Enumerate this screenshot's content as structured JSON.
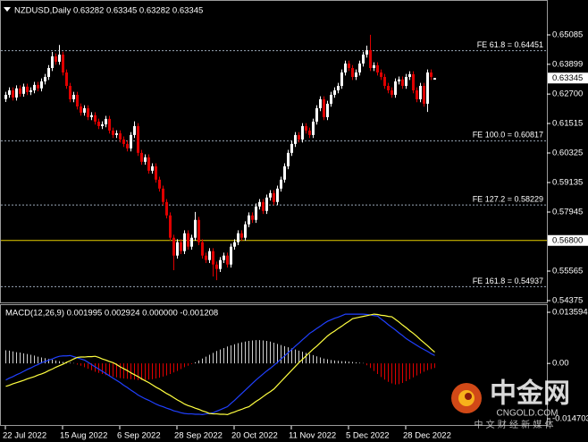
{
  "chart_data": [
    {
      "type": "candlestick",
      "title": "NZDUSD,Daily 0.63282 0.63345 0.63282 0.63345",
      "up_color": "#ffffff",
      "down_color": "#e00000",
      "ylim": [
        0.54267,
        0.66455
      ],
      "yticks": [
        0.65085,
        0.63899,
        {
          "value": 0.627,
          "label": "0.62700"
        },
        0.61515,
        0.60325,
        0.59135,
        0.57945,
        0.55565,
        0.54375
      ],
      "levels": [
        {
          "label": "FE 61.8 = 0.64451",
          "value": 0.64451
        },
        {
          "label": "FE 100.0 = 0.60817",
          "value": 0.60817
        },
        {
          "label": "FE 127.2 = 0.58229",
          "value": 0.58229
        },
        {
          "label": "FE 161.8 = 0.54937",
          "value": 0.54937
        }
      ],
      "level_color": "#9aa8b8",
      "hline": {
        "value": 0.568,
        "label": "0.56800",
        "color": "#e8d000"
      },
      "last_price": 0.63345,
      "open": [
        0.625,
        0.6267,
        0.6285,
        0.6256,
        0.6293,
        0.6271,
        0.63,
        0.6278,
        0.6285,
        0.6307,
        0.6293,
        0.6321,
        0.6339,
        0.6375,
        0.6422,
        0.64,
        0.6429,
        0.6357,
        0.6303,
        0.6249,
        0.6267,
        0.622,
        0.6195,
        0.6213,
        0.6177,
        0.6185,
        0.6159,
        0.6141,
        0.6148,
        0.617,
        0.6123,
        0.6105,
        0.6112,
        0.6087,
        0.6069,
        0.6051,
        0.6105,
        0.6141,
        0.6033,
        0.5997,
        0.6015,
        0.5961,
        0.5979,
        0.5925,
        0.5889,
        0.5835,
        0.5781,
        0.5691,
        0.5619,
        0.5673,
        0.5637,
        0.5709,
        0.5655,
        0.5691,
        0.5763,
        0.5673,
        0.5619,
        0.5601,
        0.5637,
        0.5583,
        0.5565,
        0.5601,
        0.5619,
        0.5583,
        0.5655,
        0.5673,
        0.5709,
        0.5691,
        0.5745,
        0.5781,
        0.5763,
        0.5817,
        0.5835,
        0.5799,
        0.5853,
        0.5871,
        0.5835,
        0.5889,
        0.5925,
        0.5979,
        0.6033,
        0.6069,
        0.6105,
        0.6087,
        0.6141,
        0.6123,
        0.6105,
        0.6159,
        0.6213,
        0.6249,
        0.6177,
        0.6231,
        0.6267,
        0.6285,
        0.6303,
        0.6357,
        0.6393,
        0.6375,
        0.6339,
        0.6357,
        0.6393,
        0.6429,
        0.6447,
        0.6375,
        0.6386,
        0.6357,
        0.6339,
        0.6303,
        0.6285,
        0.6267,
        0.6321,
        0.6329,
        0.6303,
        0.6339,
        0.635,
        0.6285,
        0.6249,
        0.6303,
        0.6231,
        0.6357,
        0.63282
      ],
      "high": [
        0.6279,
        0.6297,
        0.6297,
        0.6305,
        0.6305,
        0.6312,
        0.6312,
        0.6297,
        0.6319,
        0.6319,
        0.6333,
        0.6351,
        0.6387,
        0.644,
        0.6434,
        0.6468,
        0.6441,
        0.6369,
        0.6315,
        0.6279,
        0.6279,
        0.6232,
        0.6225,
        0.6225,
        0.6197,
        0.6197,
        0.6171,
        0.616,
        0.6182,
        0.6182,
        0.6135,
        0.6124,
        0.6124,
        0.6099,
        0.6081,
        0.6117,
        0.616,
        0.6153,
        0.6045,
        0.6027,
        0.6027,
        0.5991,
        0.5991,
        0.5937,
        0.5901,
        0.5847,
        0.5793,
        0.5703,
        0.5685,
        0.5685,
        0.5721,
        0.5721,
        0.5703,
        0.5795,
        0.5775,
        0.5685,
        0.5631,
        0.5649,
        0.5649,
        0.5595,
        0.5613,
        0.5631,
        0.5631,
        0.5667,
        0.5685,
        0.5721,
        0.5721,
        0.5757,
        0.5793,
        0.5793,
        0.5829,
        0.5847,
        0.5847,
        0.5865,
        0.5883,
        0.5883,
        0.5901,
        0.5937,
        0.5991,
        0.6045,
        0.6081,
        0.6117,
        0.6117,
        0.6153,
        0.6153,
        0.6135,
        0.6171,
        0.6225,
        0.6261,
        0.6261,
        0.6243,
        0.6279,
        0.6297,
        0.6315,
        0.6369,
        0.6405,
        0.6405,
        0.6387,
        0.6369,
        0.6405,
        0.6441,
        0.6465,
        0.6509,
        0.6398,
        0.6398,
        0.6369,
        0.6351,
        0.6315,
        0.6297,
        0.6333,
        0.6341,
        0.6341,
        0.6351,
        0.6362,
        0.6362,
        0.6297,
        0.6315,
        0.6315,
        0.6369,
        0.6369,
        0.63345
      ],
      "low": [
        0.6238,
        0.6255,
        0.6244,
        0.6244,
        0.6259,
        0.6259,
        0.6266,
        0.6266,
        0.6273,
        0.6281,
        0.6281,
        0.6309,
        0.6327,
        0.6363,
        0.6388,
        0.6388,
        0.6345,
        0.6291,
        0.6237,
        0.6237,
        0.6208,
        0.6183,
        0.6183,
        0.6165,
        0.6165,
        0.6147,
        0.6129,
        0.6129,
        0.6136,
        0.6111,
        0.6093,
        0.6093,
        0.6075,
        0.6057,
        0.6039,
        0.6039,
        0.6093,
        0.6021,
        0.5985,
        0.5985,
        0.5949,
        0.5949,
        0.5913,
        0.5877,
        0.5823,
        0.5769,
        0.5679,
        0.556,
        0.5607,
        0.5625,
        0.5625,
        0.5643,
        0.5643,
        0.5679,
        0.5661,
        0.5607,
        0.5589,
        0.5589,
        0.5535,
        0.552,
        0.5553,
        0.5589,
        0.5571,
        0.5571,
        0.5643,
        0.5661,
        0.5679,
        0.5679,
        0.5733,
        0.5751,
        0.5751,
        0.5805,
        0.5787,
        0.5787,
        0.5841,
        0.5823,
        0.5823,
        0.5877,
        0.5913,
        0.5967,
        0.6021,
        0.6057,
        0.6075,
        0.6075,
        0.6111,
        0.6093,
        0.6093,
        0.6147,
        0.6201,
        0.6165,
        0.6165,
        0.6219,
        0.6255,
        0.6273,
        0.6291,
        0.6345,
        0.6363,
        0.6327,
        0.6327,
        0.6345,
        0.6381,
        0.6417,
        0.6363,
        0.6363,
        0.6345,
        0.6327,
        0.6291,
        0.6273,
        0.6255,
        0.6255,
        0.6309,
        0.6291,
        0.6291,
        0.6327,
        0.6273,
        0.6237,
        0.6237,
        0.6219,
        0.6198,
        0.6327,
        0.63282
      ],
      "close": [
        0.6267,
        0.6285,
        0.6256,
        0.6293,
        0.6271,
        0.63,
        0.6278,
        0.6285,
        0.6307,
        0.6293,
        0.6321,
        0.6339,
        0.6375,
        0.6422,
        0.64,
        0.6429,
        0.6357,
        0.6303,
        0.6249,
        0.6267,
        0.622,
        0.6195,
        0.6213,
        0.6177,
        0.6185,
        0.6159,
        0.6141,
        0.6148,
        0.617,
        0.6123,
        0.6105,
        0.6112,
        0.6087,
        0.6069,
        0.6051,
        0.6105,
        0.6141,
        0.6033,
        0.5997,
        0.6015,
        0.5961,
        0.5979,
        0.5925,
        0.5889,
        0.5835,
        0.5781,
        0.5691,
        0.5619,
        0.5673,
        0.5637,
        0.5709,
        0.5655,
        0.5691,
        0.5763,
        0.5673,
        0.5619,
        0.5601,
        0.5637,
        0.5583,
        0.5565,
        0.5601,
        0.5619,
        0.5583,
        0.5655,
        0.5673,
        0.5709,
        0.5691,
        0.5745,
        0.5781,
        0.5763,
        0.5817,
        0.5835,
        0.5799,
        0.5853,
        0.5871,
        0.5835,
        0.5889,
        0.5925,
        0.5979,
        0.6033,
        0.6069,
        0.6105,
        0.6087,
        0.6141,
        0.6123,
        0.6105,
        0.6159,
        0.6213,
        0.6249,
        0.6177,
        0.6231,
        0.6267,
        0.6285,
        0.6303,
        0.6357,
        0.6393,
        0.6375,
        0.6339,
        0.6357,
        0.6393,
        0.6429,
        0.6447,
        0.6375,
        0.6386,
        0.6357,
        0.6339,
        0.6303,
        0.6285,
        0.6267,
        0.6321,
        0.6329,
        0.6303,
        0.6339,
        0.635,
        0.6285,
        0.6249,
        0.6303,
        0.6231,
        0.6357,
        0.6339,
        0.63345
      ]
    },
    {
      "type": "macd",
      "title": "MACD(12,26,9) 0.001995 0.002924 0.000000 -0.001208",
      "ylim": [
        -0.0166,
        0.0155
      ],
      "yticks": [
        0.013594,
        {
          "value": 0,
          "label": "0.00"
        },
        -0.014703
      ],
      "categories": [
        "22 Jul 2022",
        null,
        null,
        null,
        null,
        null,
        null,
        null,
        null,
        null,
        null,
        null,
        null,
        null,
        null,
        null,
        "15 Aug 2022",
        null,
        null,
        null,
        null,
        null,
        null,
        null,
        null,
        null,
        null,
        null,
        null,
        null,
        null,
        null,
        "6 Sep 2022",
        null,
        null,
        null,
        null,
        null,
        null,
        null,
        null,
        null,
        null,
        null,
        null,
        null,
        null,
        null,
        "28 Sep 2022",
        null,
        null,
        null,
        null,
        null,
        null,
        null,
        null,
        null,
        null,
        null,
        null,
        null,
        null,
        null,
        "20 Oct 2022",
        null,
        null,
        null,
        null,
        null,
        null,
        null,
        null,
        null,
        null,
        null,
        null,
        null,
        null,
        null,
        "11 Nov 2022",
        null,
        null,
        null,
        null,
        null,
        null,
        null,
        null,
        null,
        null,
        null,
        null,
        null,
        null,
        null,
        "5 Dec 2022",
        null,
        null,
        null,
        null,
        null,
        null,
        null,
        null,
        null,
        null,
        null,
        null,
        null,
        null,
        null,
        "28 Dec 2022",
        null,
        null,
        null,
        null,
        null,
        null,
        null,
        null
      ],
      "series": [
        {
          "kind": "histogram",
          "color": "#d0d0d0",
          "neg_color": "#e00000",
          "values": [
            0.0035,
            0.0034,
            0.0032,
            0.003,
            0.0029,
            0.0027,
            0.0025,
            0.0023,
            0.0021,
            0.0018,
            0.0016,
            0.0014,
            0.0012,
            0.001,
            0.0008,
            0.0006,
            0.0004,
            0.0003,
            0.0002,
            0.0001,
            -0.0003,
            -0.0006,
            -0.001,
            -0.0014,
            -0.0018,
            -0.0022,
            -0.0025,
            -0.0028,
            -0.0031,
            -0.0033,
            -0.0035,
            -0.0037,
            -0.0039,
            -0.004,
            -0.0041,
            -0.0042,
            -0.0043,
            -0.0044,
            -0.0044,
            -0.0044,
            -0.0043,
            -0.0042,
            -0.004,
            -0.0038,
            -0.0035,
            -0.0032,
            -0.0028,
            -0.0024,
            -0.002,
            -0.0015,
            -0.001,
            -0.0006,
            -0.0002,
            0.0003,
            0.0008,
            0.0013,
            0.0018,
            0.0023,
            0.0028,
            0.0033,
            0.0037,
            0.0041,
            0.0045,
            0.0048,
            0.0051,
            0.0054,
            0.0056,
            0.0058,
            0.006,
            0.0061,
            0.0062,
            0.0062,
            0.0061,
            0.006,
            0.0058,
            0.0055,
            0.0052,
            0.0049,
            0.0046,
            0.0043,
            0.004,
            0.0037,
            0.0034,
            0.0031,
            0.0028,
            0.0025,
            0.0022,
            0.0019,
            0.0016,
            0.0013,
            0.0011,
            0.0009,
            0.0008,
            0.0007,
            0.0006,
            0.0006,
            0.0005,
            0.0004,
            0.0003,
            0.0002,
            0.0001,
            -0.0005,
            -0.0012,
            -0.002,
            -0.0028,
            -0.0036,
            -0.0043,
            -0.0049,
            -0.0053,
            -0.0056,
            -0.0055,
            -0.0052,
            -0.0047,
            -0.0042,
            -0.0037,
            -0.0032,
            -0.0027,
            -0.0022,
            -0.0018,
            -0.0015,
            -0.0012
          ]
        },
        {
          "kind": "line",
          "color": "#2040ff",
          "values": [
            -0.0044,
            -0.0039,
            -0.0035,
            -0.003,
            -0.0026,
            -0.0021,
            -0.0016,
            -0.0012,
            -0.0007,
            -0.0003,
            0.0002,
            0.0005,
            0.0009,
            0.0012,
            0.0016,
            0.0019,
            0.002,
            0.002,
            0.0021,
            0.0018,
            0.0015,
            0.0012,
            0.0009,
            0.0003,
            -0.0003,
            -0.0009,
            -0.0015,
            -0.0021,
            -0.0027,
            -0.0033,
            -0.0039,
            -0.0045,
            -0.0051,
            -0.0058,
            -0.0064,
            -0.0071,
            -0.0077,
            -0.0084,
            -0.0089,
            -0.0094,
            -0.0098,
            -0.0103,
            -0.0108,
            -0.0112,
            -0.0115,
            -0.0119,
            -0.0122,
            -0.0126,
            -0.0128,
            -0.0131,
            -0.0133,
            -0.0134,
            -0.0134,
            -0.0135,
            -0.0135,
            -0.0136,
            -0.0134,
            -0.0133,
            -0.0131,
            -0.0127,
            -0.0123,
            -0.0119,
            -0.0115,
            -0.0106,
            -0.0098,
            -0.0089,
            -0.008,
            -0.0071,
            -0.0062,
            -0.0053,
            -0.0044,
            -0.0036,
            -0.0028,
            -0.002,
            -0.0013,
            -0.0005,
            0.0003,
            0.0012,
            0.002,
            0.0029,
            0.0037,
            0.0046,
            0.0054,
            0.0063,
            0.0071,
            0.008,
            0.0086,
            0.0093,
            0.0099,
            0.0106,
            0.0112,
            0.0116,
            0.012,
            0.0123,
            0.0127,
            0.0131,
            0.0131,
            0.0131,
            0.0131,
            0.0131,
            0.0131,
            0.013,
            0.0129,
            0.0127,
            0.0126,
            0.0118,
            0.0111,
            0.0103,
            0.0096,
            0.0089,
            0.0081,
            0.0074,
            0.0066,
            0.006,
            0.0054,
            0.0048,
            0.0042,
            0.0037,
            0.0032,
            0.0026,
            0.0021
          ]
        },
        {
          "kind": "line",
          "color": "#ffff40",
          "values": [
            -0.0061,
            -0.0058,
            -0.0054,
            -0.0051,
            -0.0048,
            -0.0045,
            -0.0041,
            -0.0038,
            -0.0035,
            -0.0031,
            -0.0028,
            -0.0024,
            -0.0019,
            -0.0015,
            -0.001,
            -0.0006,
            -0.0002,
            0.0003,
            0.0007,
            0.0012,
            0.0016,
            0.0017,
            0.0017,
            0.0018,
            0.0018,
            0.0019,
            0.0016,
            0.0012,
            0.0009,
            0.0005,
            0.0002,
            -0.0003,
            -0.0009,
            -0.0014,
            -0.0019,
            -0.0025,
            -0.003,
            -0.0035,
            -0.0041,
            -0.0046,
            -0.0051,
            -0.0057,
            -0.0063,
            -0.0068,
            -0.0074,
            -0.008,
            -0.0085,
            -0.0091,
            -0.0097,
            -0.0102,
            -0.0108,
            -0.0112,
            -0.0115,
            -0.0119,
            -0.0122,
            -0.0126,
            -0.0129,
            -0.0133,
            -0.0134,
            -0.0134,
            -0.0135,
            -0.0135,
            -0.0136,
            -0.0132,
            -0.0129,
            -0.0125,
            -0.0122,
            -0.0118,
            -0.0115,
            -0.0108,
            -0.0101,
            -0.0095,
            -0.0088,
            -0.0081,
            -0.0075,
            -0.0068,
            -0.0058,
            -0.0048,
            -0.0038,
            -0.0028,
            -0.0018,
            -0.0008,
            0.0002,
            0.0011,
            0.002,
            0.0029,
            0.0038,
            0.0046,
            0.0055,
            0.0064,
            0.0073,
            0.008,
            0.0086,
            0.0093,
            0.0099,
            0.0106,
            0.0112,
            0.0119,
            0.0121,
            0.0123,
            0.0125,
            0.0127,
            0.0129,
            0.0131,
            0.013,
            0.0128,
            0.0127,
            0.0125,
            0.0124,
            0.0117,
            0.011,
            0.0102,
            0.0095,
            0.0087,
            0.008,
            0.0072,
            0.0063,
            0.0055,
            0.0047,
            0.0038,
            0.003
          ]
        }
      ]
    }
  ],
  "watermark": {
    "name": "中金网",
    "site": "CNGOLD.COM",
    "slogan": "中 文 财 经 新 媒 体"
  }
}
